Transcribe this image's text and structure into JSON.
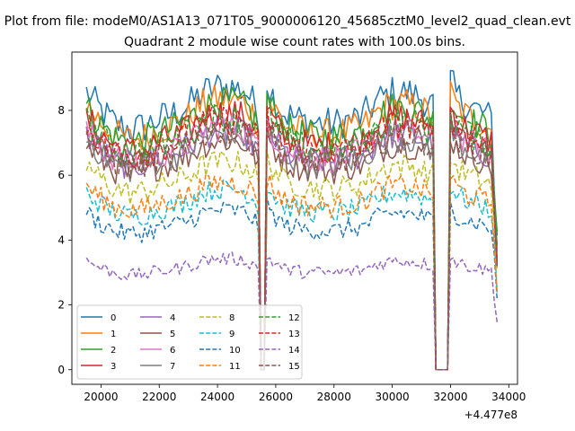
{
  "chart_data": {
    "type": "line",
    "suptitle": "Plot from file: modeM0/AS1A13_071T05_9000006120_45685cztM0_level2_quad_clean.evt",
    "title": "Quadrant 2 module wise count rates with 100.0s bins.",
    "xlabel": "",
    "ylabel": "",
    "x_offset_text": "+4.477e8",
    "xlim": [
      19000,
      34300
    ],
    "ylim": [
      -0.45,
      9.8
    ],
    "x_ticks": [
      20000,
      22000,
      24000,
      26000,
      28000,
      30000,
      32000,
      34000
    ],
    "x_tick_labels": [
      "20000",
      "22000",
      "24000",
      "26000",
      "28000",
      "30000",
      "32000",
      "34000"
    ],
    "y_ticks": [
      0,
      2,
      4,
      6,
      8
    ],
    "y_tick_labels": [
      "0",
      "2",
      "4",
      "6",
      "8"
    ],
    "grid": false,
    "legend_placement": "lower-left",
    "legend_columns": 4,
    "x_start": 19500,
    "x_step": 100,
    "gaps": [
      [
        25480,
        25620
      ],
      [
        31480,
        31950
      ]
    ],
    "series": [
      {
        "name": "0",
        "color": "#1f77b4",
        "dashed": false,
        "level_series_index": 0,
        "mean_level": 8.15
      },
      {
        "name": "1",
        "color": "#ff7f0e",
        "dashed": false,
        "level_series_index": 1,
        "mean_level": 7.8
      },
      {
        "name": "2",
        "color": "#2ca02c",
        "dashed": false,
        "level_series_index": 2,
        "mean_level": 7.7
      },
      {
        "name": "3",
        "color": "#d62728",
        "dashed": false,
        "level_series_index": 3,
        "mean_level": 7.4
      },
      {
        "name": "4",
        "color": "#9467bd",
        "dashed": false,
        "level_series_index": 4,
        "mean_level": 6.9
      },
      {
        "name": "5",
        "color": "#8c564b",
        "dashed": false,
        "level_series_index": 5,
        "mean_level": 6.6
      },
      {
        "name": "6",
        "color": "#e377c2",
        "dashed": false,
        "level_series_index": 6,
        "mean_level": 7.0
      },
      {
        "name": "7",
        "color": "#7f7f7f",
        "dashed": false,
        "level_series_index": 7,
        "mean_level": 6.8
      },
      {
        "name": "8",
        "color": "#bcbd22",
        "dashed": true,
        "level_series_index": 8,
        "mean_level": 6.0
      },
      {
        "name": "9",
        "color": "#17becf",
        "dashed": true,
        "level_series_index": 9,
        "mean_level": 5.2
      },
      {
        "name": "10",
        "color": "#1f77b4",
        "dashed": true,
        "level_series_index": 10,
        "mean_level": 4.6
      },
      {
        "name": "11",
        "color": "#ff7f0e",
        "dashed": true,
        "level_series_index": 11,
        "mean_level": 5.4
      },
      {
        "name": "12",
        "color": "#2ca02c",
        "dashed": true,
        "level_series_index": 12,
        "mean_level": 7.3
      },
      {
        "name": "13",
        "color": "#d62728",
        "dashed": true,
        "level_series_index": 13,
        "mean_level": 7.2
      },
      {
        "name": "14",
        "color": "#9467bd",
        "dashed": true,
        "level_series_index": 14,
        "mean_level": 3.2
      },
      {
        "name": "15",
        "color": "#8c564b",
        "dashed": true,
        "level_series_index": 15,
        "mean_level": 6.9
      }
    ],
    "shape_profile": {
      "x": [
        19500,
        20000,
        20500,
        21000,
        21500,
        22000,
        22500,
        23000,
        23500,
        24000,
        24500,
        25000,
        25300,
        25450,
        25650,
        25900,
        26300,
        27000,
        28000,
        29000,
        29500,
        30000,
        30500,
        31000,
        31400,
        31980,
        32200,
        32600,
        33000,
        33400,
        33600
      ],
      "factor": [
        1.05,
        0.98,
        0.93,
        0.91,
        0.92,
        0.95,
        0.97,
        1.0,
        1.05,
        1.07,
        1.07,
        1.05,
        1.0,
        0.95,
        1.1,
        1.04,
        0.97,
        0.94,
        0.93,
        0.96,
        1.02,
        1.05,
        1.05,
        1.03,
        1.0,
        1.1,
        1.04,
        1.0,
        0.98,
        0.95,
        0.5
      ]
    }
  }
}
